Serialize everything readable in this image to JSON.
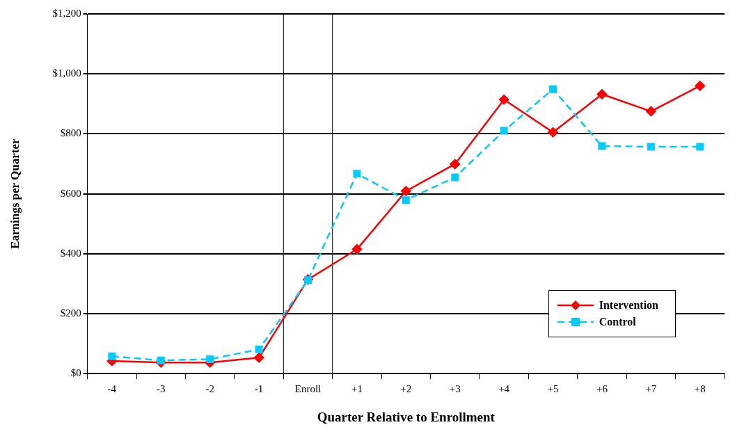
{
  "chart_data": {
    "type": "line",
    "xlabel": "Quarter Relative to Enrollment",
    "ylabel": "Earnings per Quarter",
    "x": [
      -4,
      -3,
      -2,
      -1,
      0,
      1,
      2,
      3,
      4,
      5,
      6,
      7,
      8
    ],
    "series": [
      {
        "name": "Intervention",
        "color": "#ff0000",
        "marker": "diamond",
        "line_style": "solid",
        "values": [
          42,
          37,
          37,
          53,
          314,
          415,
          609,
          699,
          914,
          805,
          932,
          875,
          960
        ]
      },
      {
        "name": "Control",
        "color": "#00ccff",
        "marker": "square",
        "line_style": "dashed",
        "values": [
          58,
          44,
          48,
          81,
          312,
          667,
          579,
          655,
          810,
          949,
          759,
          757,
          757
        ]
      }
    ],
    "xlim": [
      -4.5,
      8.5
    ],
    "xticks": [
      {
        "value": -4.5,
        "label": null
      },
      -4,
      {
        "value": -3.5,
        "label": null
      },
      -3,
      {
        "value": -2.5,
        "label": null
      },
      -2,
      {
        "value": -1.5,
        "label": null
      },
      -1,
      {
        "value": -0.5,
        "label": null
      },
      {
        "value": 0,
        "label": "Enroll"
      },
      {
        "value": 0.5,
        "label": null
      },
      {
        "value": 1,
        "label": "+1"
      },
      {
        "value": 1.5,
        "label": null
      },
      {
        "value": 2,
        "label": "+2"
      },
      {
        "value": 2.5,
        "label": null
      },
      {
        "value": 3,
        "label": "+3"
      },
      {
        "value": 3.5,
        "label": null
      },
      {
        "value": 4,
        "label": "+4"
      },
      {
        "value": 4.5,
        "label": null
      },
      {
        "value": 5,
        "label": "+5"
      },
      {
        "value": 5.5,
        "label": null
      },
      {
        "value": 6,
        "label": "+6"
      },
      {
        "value": 6.5,
        "label": null
      },
      {
        "value": 7,
        "label": "+7"
      },
      {
        "value": 7.5,
        "label": null
      },
      {
        "value": 8,
        "label": "+8"
      },
      {
        "value": 8.5,
        "label": null
      }
    ],
    "ylim": [
      0,
      1200
    ],
    "yticks": [
      {
        "value": 0,
        "label": "$0"
      },
      {
        "value": 200,
        "label": "$200"
      },
      {
        "value": 400,
        "label": "$400"
      },
      {
        "value": 600,
        "label": "$600"
      },
      {
        "value": 800,
        "label": "$800"
      },
      {
        "value": 1000,
        "label": "$1,000"
      },
      {
        "value": 1200,
        "label": "$1,200"
      }
    ],
    "ref_lines": [
      {
        "axis": "x",
        "value": -0.5,
        "color": "#000000"
      },
      {
        "axis": "x",
        "value": 0.5,
        "color": "#000000"
      }
    ],
    "grid": "y",
    "legend": "bottom right"
  }
}
